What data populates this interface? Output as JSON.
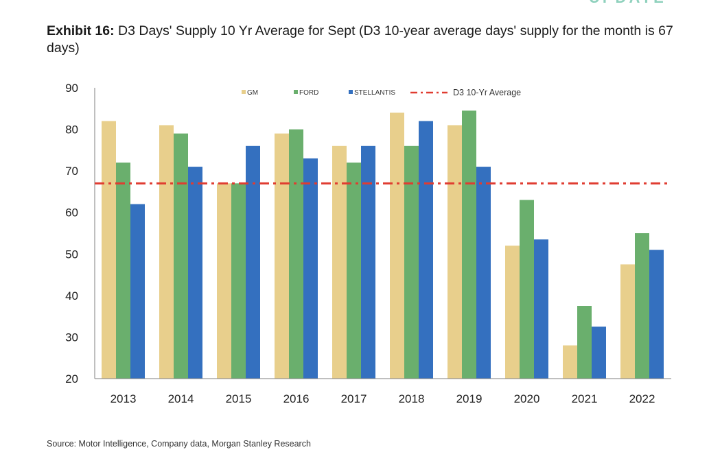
{
  "header": {
    "exhibit_label": "Exhibit 16:",
    "title_text": "D3 Days' Supply 10 Yr Average for Sept (D3 10-year average days' supply for the month is 67 days)"
  },
  "source": "Source: Motor Intelligence, Company data, Morgan Stanley Research",
  "chart_data": {
    "type": "bar",
    "title": "D3 Days' Supply 10 Yr Average for Sept (D3 10-year average days' supply for the month is 67 days)",
    "categories": [
      "2013",
      "2014",
      "2015",
      "2016",
      "2017",
      "2018",
      "2019",
      "2020",
      "2021",
      "2022"
    ],
    "series": [
      {
        "name": "GM",
        "color": "#e8cf8c",
        "values": [
          82,
          81,
          67,
          79,
          76,
          84,
          81,
          52,
          28,
          47.5
        ]
      },
      {
        "name": "FORD",
        "color": "#6aaf6d",
        "values": [
          72,
          79,
          67,
          80,
          72,
          76,
          84.5,
          63,
          37.5,
          55
        ]
      },
      {
        "name": "STELLANTIS",
        "color": "#3470bf",
        "values": [
          62,
          71,
          76,
          73,
          76,
          82,
          71,
          53.5,
          32.5,
          51
        ]
      }
    ],
    "reference_line": {
      "name": "D3 10-Yr Average",
      "value": 67,
      "color": "#e03c31",
      "style": "dash-dot"
    },
    "ylim": [
      20,
      90
    ],
    "yticks": [
      20,
      30,
      40,
      50,
      60,
      70,
      80,
      90
    ],
    "xlabel": "",
    "ylabel": "",
    "grid": false,
    "legend_position": "top"
  }
}
